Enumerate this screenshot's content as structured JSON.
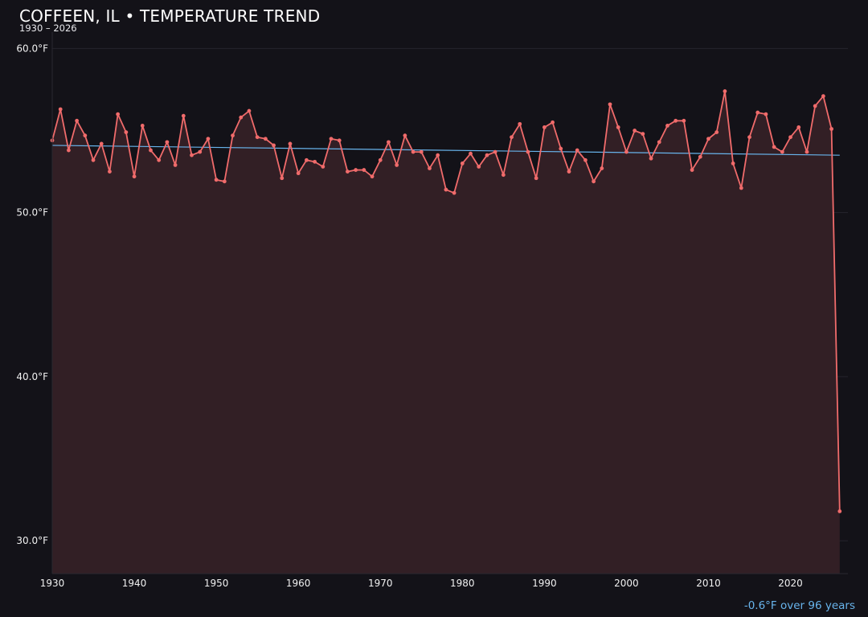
{
  "header": {
    "title": "COFFEEN, IL • TEMPERATURE TREND",
    "subtitle": "1930 – 2026"
  },
  "footer": {
    "trend_summary": "-0.6°F over 96 years"
  },
  "colors": {
    "background": "#131218",
    "series_line": "#f06b6b",
    "area_fill": "#321f25",
    "trend_line": "#68b4ec",
    "summary_text": "#68b4ec",
    "grid": "#26242c"
  },
  "chart_data": {
    "type": "line",
    "title": "COFFEEN, IL • TEMPERATURE TREND",
    "subtitle": "1930 – 2026",
    "xlabel": "",
    "ylabel": "",
    "xlim": [
      1930,
      2027
    ],
    "ylim": [
      28,
      61
    ],
    "x_ticks": [
      1930,
      1940,
      1950,
      1960,
      1970,
      1980,
      1990,
      2000,
      2010,
      2020
    ],
    "y_ticks": [
      30,
      40,
      50,
      60
    ],
    "y_tick_labels": [
      "30.0°F",
      "40.0°F",
      "50.0°F",
      "60.0°F"
    ],
    "grid": true,
    "area_fill": true,
    "series": [
      {
        "x": [
          1930,
          1931,
          1932,
          1933,
          1934,
          1935,
          1936,
          1937,
          1938,
          1939,
          1940,
          1941,
          1942,
          1943,
          1944,
          1945,
          1946,
          1947,
          1948,
          1949,
          1950,
          1951,
          1952,
          1953,
          1954,
          1955,
          1956,
          1957,
          1958,
          1959,
          1960,
          1961,
          1962,
          1963,
          1964,
          1965,
          1966,
          1967,
          1968,
          1969,
          1970,
          1971,
          1972,
          1973,
          1974,
          1975,
          1976,
          1977,
          1978,
          1979,
          1980,
          1981,
          1982,
          1983,
          1984,
          1985,
          1986,
          1987,
          1988,
          1989,
          1990,
          1991,
          1992,
          1993,
          1994,
          1995,
          1996,
          1997,
          1998,
          1999,
          2000,
          2001,
          2002,
          2003,
          2004,
          2005,
          2006,
          2007,
          2008,
          2009,
          2010,
          2011,
          2012,
          2013,
          2014,
          2015,
          2016,
          2017,
          2018,
          2019,
          2020,
          2021,
          2022,
          2023,
          2024,
          2025,
          2026
        ],
        "values": [
          54.4,
          56.3,
          53.8,
          55.6,
          54.7,
          53.2,
          54.2,
          52.5,
          56.0,
          54.9,
          52.2,
          55.3,
          53.8,
          53.2,
          54.3,
          52.9,
          55.9,
          53.5,
          53.7,
          54.5,
          52.0,
          51.9,
          54.7,
          55.8,
          56.2,
          54.6,
          54.5,
          54.1,
          52.1,
          54.2,
          52.4,
          53.2,
          53.1,
          52.8,
          54.5,
          54.4,
          52.5,
          52.6,
          52.6,
          52.2,
          53.2,
          54.3,
          52.9,
          54.7,
          53.7,
          53.7,
          52.7,
          53.5,
          51.4,
          51.2,
          53.0,
          53.6,
          52.8,
          53.5,
          53.7,
          52.3,
          54.6,
          55.4,
          53.7,
          52.1,
          55.2,
          55.5,
          53.9,
          52.5,
          53.8,
          53.2,
          51.9,
          52.7,
          56.6,
          55.2,
          53.7,
          55.0,
          54.8,
          53.3,
          54.3,
          55.3,
          55.6,
          55.6,
          52.6,
          53.4,
          54.5,
          54.9,
          57.4,
          53.0,
          51.5,
          54.6,
          56.1,
          56.0,
          54.0,
          53.7,
          54.6,
          55.2,
          53.7,
          56.5,
          57.1,
          55.1,
          31.8
        ]
      }
    ],
    "trend_line": {
      "x": [
        1930,
        2026
      ],
      "values": [
        54.1,
        53.5
      ],
      "change": "-0.6°F over 96 years"
    }
  }
}
